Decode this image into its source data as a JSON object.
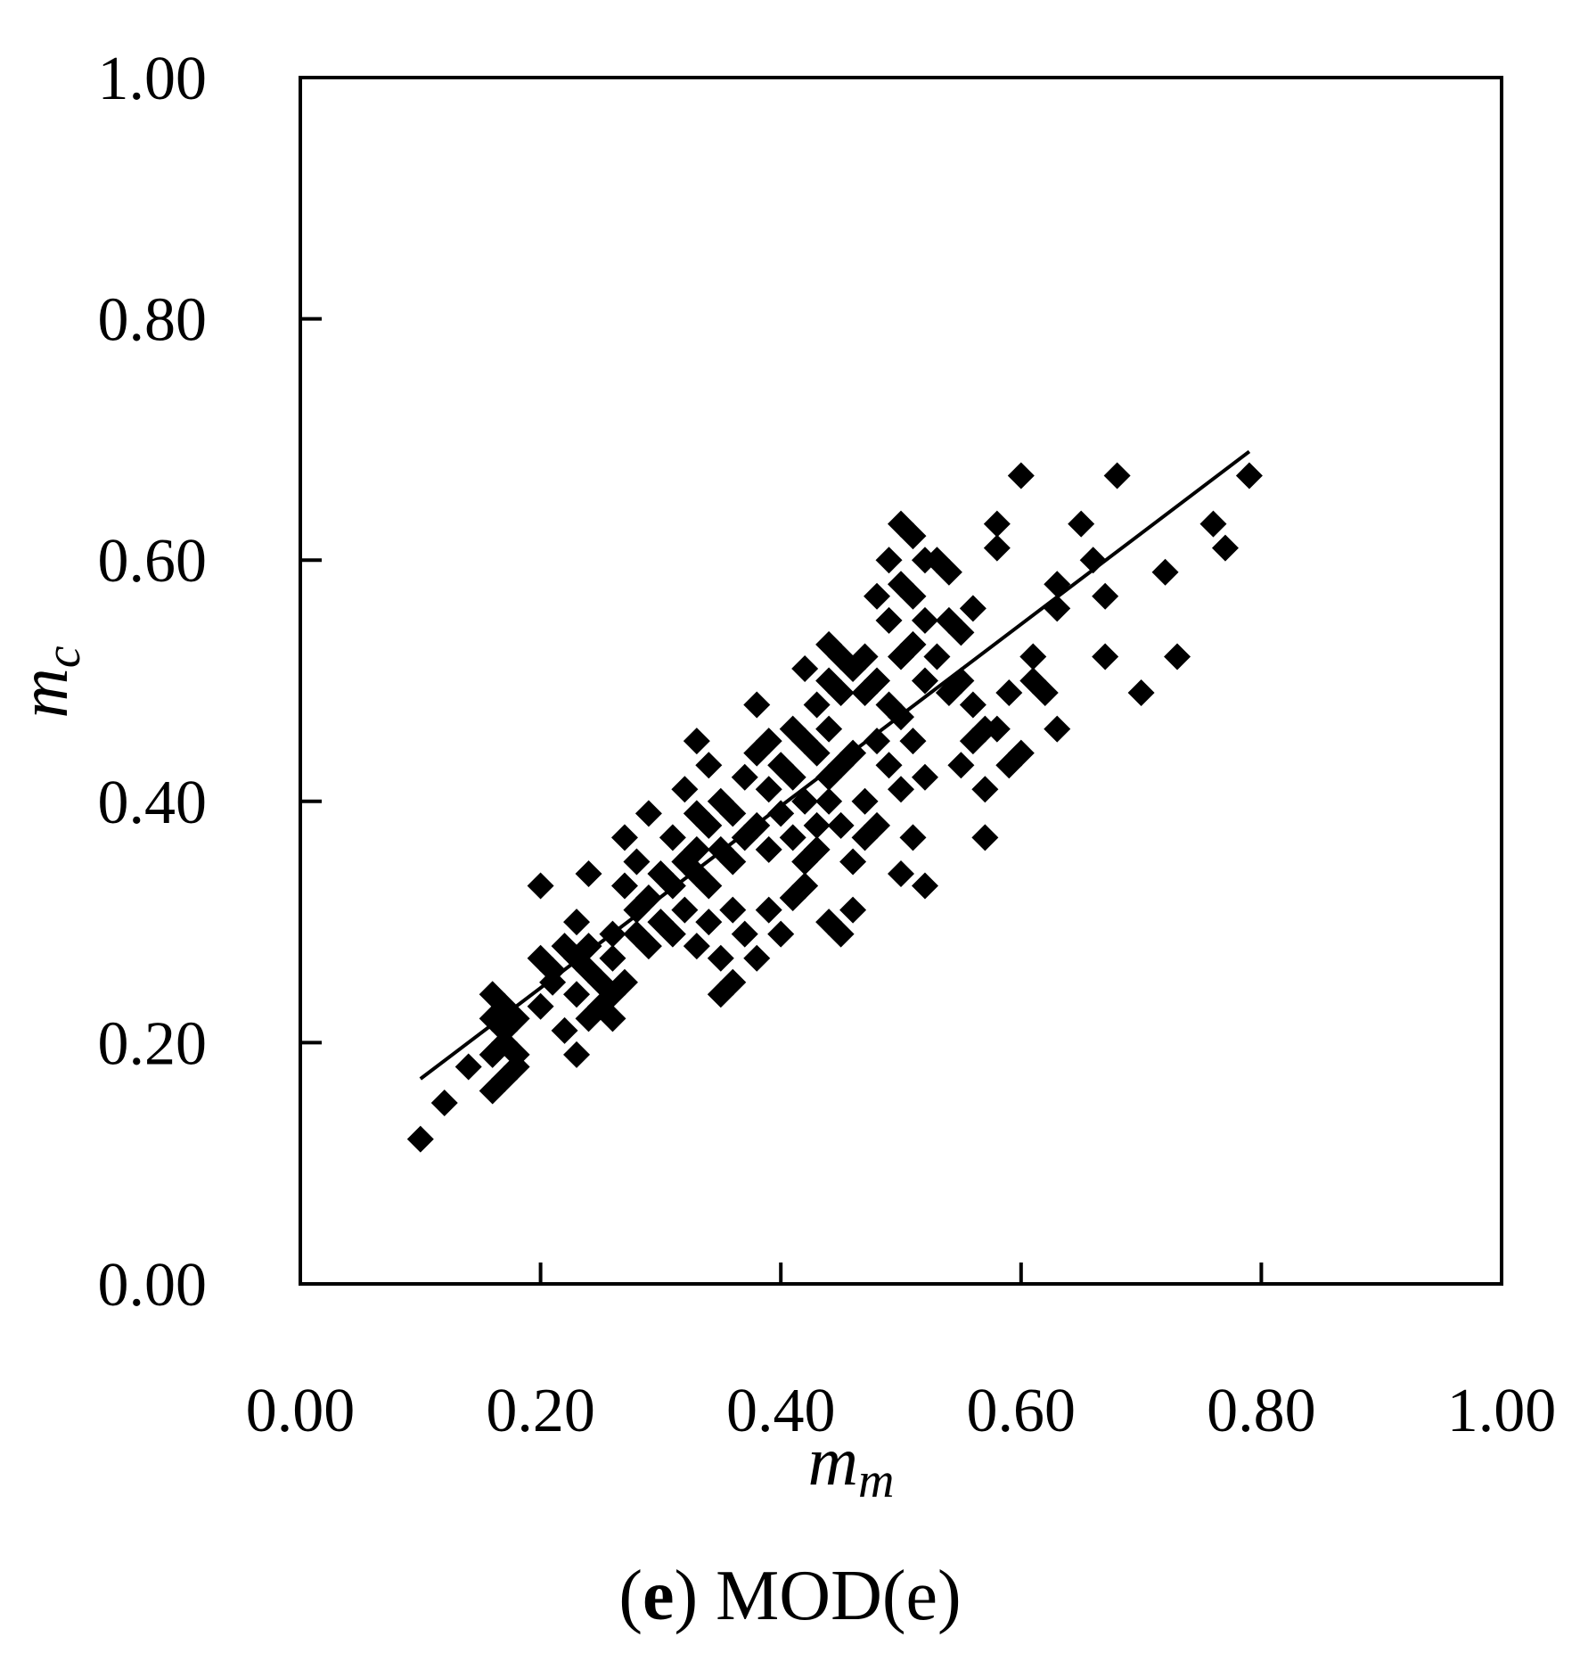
{
  "chart_data": {
    "type": "scatter",
    "title": "",
    "xlabel": {
      "main": "m",
      "sub": "m"
    },
    "ylabel": {
      "main": "m",
      "sub": "c"
    },
    "xlim": [
      0,
      1
    ],
    "ylim": [
      0,
      1
    ],
    "xticks": [
      "0.00",
      "0.20",
      "0.40",
      "0.60",
      "0.80",
      "1.00"
    ],
    "yticks": [
      "0.00",
      "0.20",
      "0.40",
      "0.60",
      "0.80",
      "1.00"
    ],
    "grid": false,
    "marker": "diamond",
    "marker_color": "#000000",
    "fit_line": {
      "x": [
        0.1,
        0.79
      ],
      "y": [
        0.17,
        0.69
      ]
    },
    "points": [
      [
        0.1,
        0.12
      ],
      [
        0.12,
        0.15
      ],
      [
        0.14,
        0.18
      ],
      [
        0.16,
        0.16
      ],
      [
        0.16,
        0.19
      ],
      [
        0.16,
        0.22
      ],
      [
        0.16,
        0.24
      ],
      [
        0.17,
        0.17
      ],
      [
        0.17,
        0.2
      ],
      [
        0.17,
        0.21
      ],
      [
        0.17,
        0.23
      ],
      [
        0.18,
        0.18
      ],
      [
        0.18,
        0.19
      ],
      [
        0.18,
        0.22
      ],
      [
        0.2,
        0.33
      ],
      [
        0.2,
        0.27
      ],
      [
        0.2,
        0.23
      ],
      [
        0.21,
        0.26
      ],
      [
        0.21,
        0.25
      ],
      [
        0.22,
        0.28
      ],
      [
        0.22,
        0.21
      ],
      [
        0.23,
        0.3
      ],
      [
        0.23,
        0.27
      ],
      [
        0.23,
        0.24
      ],
      [
        0.23,
        0.19
      ],
      [
        0.24,
        0.26
      ],
      [
        0.24,
        0.22
      ],
      [
        0.24,
        0.34
      ],
      [
        0.24,
        0.28
      ],
      [
        0.25,
        0.25
      ],
      [
        0.25,
        0.23
      ],
      [
        0.26,
        0.29
      ],
      [
        0.26,
        0.27
      ],
      [
        0.26,
        0.24
      ],
      [
        0.26,
        0.22
      ],
      [
        0.27,
        0.33
      ],
      [
        0.27,
        0.37
      ],
      [
        0.27,
        0.25
      ],
      [
        0.28,
        0.31
      ],
      [
        0.28,
        0.29
      ],
      [
        0.28,
        0.35
      ],
      [
        0.29,
        0.39
      ],
      [
        0.29,
        0.32
      ],
      [
        0.29,
        0.28
      ],
      [
        0.3,
        0.34
      ],
      [
        0.3,
        0.3
      ],
      [
        0.31,
        0.37
      ],
      [
        0.31,
        0.33
      ],
      [
        0.31,
        0.29
      ],
      [
        0.32,
        0.41
      ],
      [
        0.32,
        0.35
      ],
      [
        0.32,
        0.31
      ],
      [
        0.33,
        0.45
      ],
      [
        0.33,
        0.39
      ],
      [
        0.33,
        0.36
      ],
      [
        0.33,
        0.34
      ],
      [
        0.33,
        0.28
      ],
      [
        0.34,
        0.43
      ],
      [
        0.34,
        0.38
      ],
      [
        0.34,
        0.33
      ],
      [
        0.34,
        0.3
      ],
      [
        0.35,
        0.4
      ],
      [
        0.35,
        0.36
      ],
      [
        0.35,
        0.27
      ],
      [
        0.35,
        0.24
      ],
      [
        0.36,
        0.39
      ],
      [
        0.36,
        0.35
      ],
      [
        0.36,
        0.31
      ],
      [
        0.36,
        0.25
      ],
      [
        0.37,
        0.42
      ],
      [
        0.37,
        0.37
      ],
      [
        0.37,
        0.29
      ],
      [
        0.38,
        0.48
      ],
      [
        0.38,
        0.44
      ],
      [
        0.38,
        0.38
      ],
      [
        0.38,
        0.27
      ],
      [
        0.39,
        0.45
      ],
      [
        0.39,
        0.41
      ],
      [
        0.39,
        0.36
      ],
      [
        0.39,
        0.31
      ],
      [
        0.4,
        0.43
      ],
      [
        0.4,
        0.39
      ],
      [
        0.4,
        0.29
      ],
      [
        0.41,
        0.46
      ],
      [
        0.41,
        0.42
      ],
      [
        0.41,
        0.37
      ],
      [
        0.41,
        0.32
      ],
      [
        0.42,
        0.51
      ],
      [
        0.42,
        0.45
      ],
      [
        0.42,
        0.4
      ],
      [
        0.42,
        0.35
      ],
      [
        0.42,
        0.33
      ],
      [
        0.43,
        0.48
      ],
      [
        0.43,
        0.44
      ],
      [
        0.43,
        0.38
      ],
      [
        0.43,
        0.36
      ],
      [
        0.44,
        0.53
      ],
      [
        0.44,
        0.5
      ],
      [
        0.44,
        0.46
      ],
      [
        0.44,
        0.42
      ],
      [
        0.44,
        0.4
      ],
      [
        0.44,
        0.3
      ],
      [
        0.45,
        0.52
      ],
      [
        0.45,
        0.49
      ],
      [
        0.45,
        0.43
      ],
      [
        0.45,
        0.38
      ],
      [
        0.45,
        0.29
      ],
      [
        0.46,
        0.51
      ],
      [
        0.46,
        0.44
      ],
      [
        0.46,
        0.35
      ],
      [
        0.46,
        0.31
      ],
      [
        0.47,
        0.52
      ],
      [
        0.47,
        0.49
      ],
      [
        0.47,
        0.4
      ],
      [
        0.47,
        0.37
      ],
      [
        0.48,
        0.57
      ],
      [
        0.48,
        0.5
      ],
      [
        0.48,
        0.45
      ],
      [
        0.48,
        0.38
      ],
      [
        0.49,
        0.6
      ],
      [
        0.49,
        0.55
      ],
      [
        0.49,
        0.48
      ],
      [
        0.49,
        0.43
      ],
      [
        0.5,
        0.63
      ],
      [
        0.5,
        0.58
      ],
      [
        0.5,
        0.52
      ],
      [
        0.5,
        0.47
      ],
      [
        0.5,
        0.41
      ],
      [
        0.5,
        0.34
      ],
      [
        0.51,
        0.62
      ],
      [
        0.51,
        0.57
      ],
      [
        0.51,
        0.53
      ],
      [
        0.51,
        0.45
      ],
      [
        0.51,
        0.37
      ],
      [
        0.52,
        0.6
      ],
      [
        0.52,
        0.55
      ],
      [
        0.52,
        0.5
      ],
      [
        0.52,
        0.42
      ],
      [
        0.52,
        0.33
      ],
      [
        0.53,
        0.6
      ],
      [
        0.53,
        0.52
      ],
      [
        0.54,
        0.59
      ],
      [
        0.54,
        0.55
      ],
      [
        0.54,
        0.49
      ],
      [
        0.55,
        0.54
      ],
      [
        0.55,
        0.5
      ],
      [
        0.55,
        0.43
      ],
      [
        0.56,
        0.56
      ],
      [
        0.56,
        0.48
      ],
      [
        0.56,
        0.45
      ],
      [
        0.57,
        0.46
      ],
      [
        0.57,
        0.41
      ],
      [
        0.57,
        0.37
      ],
      [
        0.58,
        0.63
      ],
      [
        0.58,
        0.61
      ],
      [
        0.58,
        0.46
      ],
      [
        0.59,
        0.43
      ],
      [
        0.59,
        0.49
      ],
      [
        0.6,
        0.67
      ],
      [
        0.6,
        0.44
      ],
      [
        0.61,
        0.52
      ],
      [
        0.61,
        0.5
      ],
      [
        0.62,
        0.49
      ],
      [
        0.63,
        0.58
      ],
      [
        0.63,
        0.56
      ],
      [
        0.63,
        0.46
      ],
      [
        0.65,
        0.63
      ],
      [
        0.66,
        0.6
      ],
      [
        0.67,
        0.57
      ],
      [
        0.67,
        0.52
      ],
      [
        0.68,
        0.67
      ],
      [
        0.7,
        0.49
      ],
      [
        0.72,
        0.59
      ],
      [
        0.73,
        0.52
      ],
      [
        0.76,
        0.63
      ],
      [
        0.77,
        0.61
      ],
      [
        0.79,
        0.67
      ]
    ]
  },
  "caption": {
    "letter": "e",
    "text": "MOD(e)"
  }
}
